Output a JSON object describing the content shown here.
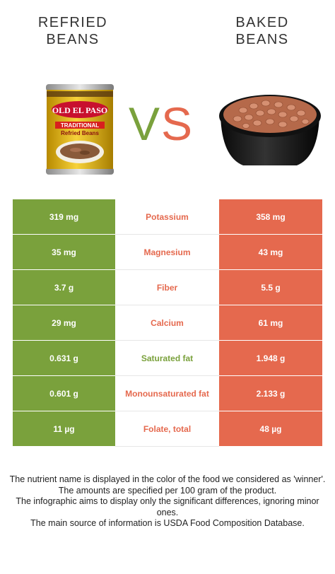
{
  "foods": {
    "left": {
      "title_line1": "REFRIED",
      "title_line2": "BEANS",
      "can_brand": "OLD EL PASO",
      "can_label1": "TRADITIONAL",
      "can_label2": "Refried Beans"
    },
    "right": {
      "title_line1": "BAKED",
      "title_line2": "BEANS"
    }
  },
  "vs": {
    "v": "V",
    "s": "S"
  },
  "colors": {
    "left_food": "#7aa13c",
    "right_food": "#e5694e"
  },
  "rows": [
    {
      "left": "319 mg",
      "nutrient": "Potassium",
      "right": "358 mg",
      "winner": "right"
    },
    {
      "left": "35 mg",
      "nutrient": "Magnesium",
      "right": "43 mg",
      "winner": "right"
    },
    {
      "left": "3.7 g",
      "nutrient": "Fiber",
      "right": "5.5 g",
      "winner": "right"
    },
    {
      "left": "29 mg",
      "nutrient": "Calcium",
      "right": "61 mg",
      "winner": "right"
    },
    {
      "left": "0.631 g",
      "nutrient": "Saturated fat",
      "right": "1.948 g",
      "winner": "left"
    },
    {
      "left": "0.601 g",
      "nutrient": "Monounsaturated fat",
      "right": "2.133 g",
      "winner": "right"
    },
    {
      "left": "11 µg",
      "nutrient": "Folate, total",
      "right": "48 µg",
      "winner": "right"
    }
  ],
  "footnote": [
    "The nutrient name is displayed in the color of the food we considered as 'winner'.",
    "The amounts are specified per 100 gram of the product.",
    "The infographic aims to display only the significant differences, ignoring minor ones.",
    "The main source of information is USDA Food Composition Database."
  ]
}
